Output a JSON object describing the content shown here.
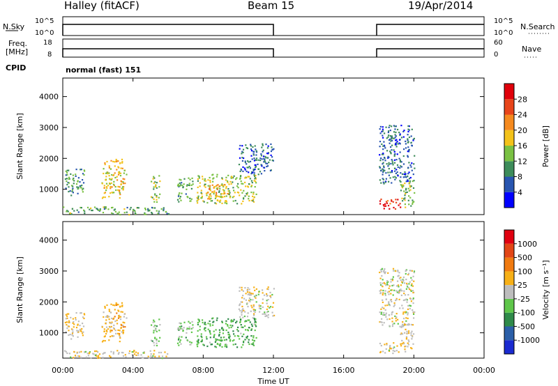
{
  "header": {
    "station": "Halley (fitACF)",
    "beam": "Beam 15",
    "date": "19/Apr/2014"
  },
  "panels": {
    "nsky": {
      "left_label": "N.Sky",
      "left_ticks": [
        "10^5",
        "10^0"
      ],
      "right_ticks": [
        "10^5",
        "10^0"
      ],
      "right_label": "N.Search"
    },
    "freq": {
      "left_label_1": "Freq.",
      "left_label_2": "[MHz]",
      "left_ticks": [
        "18",
        "8"
      ],
      "right_ticks": [
        "60",
        "0"
      ],
      "right_label": "Nave"
    },
    "cpid": {
      "label": "CPID",
      "value": "normal (fast) 151"
    }
  },
  "colorbars": {
    "power": {
      "label": "Power [dB]",
      "ticks": [
        "28",
        "24",
        "20",
        "16",
        "12",
        "8",
        "4"
      ],
      "colors": [
        "#0000ff",
        "#2855b0",
        "#3d8c5a",
        "#7ac143",
        "#f3c21a",
        "#f58a1f",
        "#e8451a",
        "#e0000a"
      ]
    },
    "velocity": {
      "label": "Velocity [m s⁻¹]",
      "ticks": [
        "1000",
        "500",
        "100",
        "25",
        "-25",
        "-100",
        "-500",
        "-1000"
      ],
      "colors": [
        "#1a2ad0",
        "#2b5fa8",
        "#2f8a4a",
        "#5fc64a",
        "#bdbdbd",
        "#f7b017",
        "#f07a10",
        "#e24616",
        "#e00010"
      ]
    }
  },
  "axes": {
    "ylabel": "Slant Range [km]",
    "xlabel": "Time UT",
    "x_ticks": [
      "00:00",
      "04:00",
      "08:00",
      "12:00",
      "16:00",
      "20:00",
      "00:00"
    ],
    "y_ticks": [
      "1000",
      "2000",
      "3000",
      "4000"
    ]
  },
  "chart_data": [
    {
      "type": "heatmap",
      "title": "Power",
      "xlabel": "Time UT",
      "ylabel": "Slant Range [km]",
      "xlim_hours": [
        0,
        24
      ],
      "ylim_km": [
        180,
        4600
      ],
      "colorbar": "Power [dB]",
      "clim": [
        0,
        32
      ],
      "blobs": [
        {
          "t0": 0.1,
          "t1": 1.2,
          "r0": 800,
          "r1": 1700,
          "value": 10
        },
        {
          "t0": 2.2,
          "t1": 3.6,
          "r0": 700,
          "r1": 2000,
          "value": 18
        },
        {
          "t0": 5.0,
          "t1": 5.5,
          "r0": 600,
          "r1": 1500,
          "value": 14
        },
        {
          "t0": 6.5,
          "t1": 7.4,
          "r0": 600,
          "r1": 1400,
          "value": 11
        },
        {
          "t0": 7.6,
          "t1": 11.0,
          "r0": 550,
          "r1": 1500,
          "value": 15
        },
        {
          "t0": 8.2,
          "t1": 9.4,
          "r0": 700,
          "r1": 1200,
          "value": 20
        },
        {
          "t0": 10.0,
          "t1": 12.0,
          "r0": 1500,
          "r1": 2500,
          "value": 7
        },
        {
          "t0": 18.0,
          "t1": 19.2,
          "r0": 350,
          "r1": 700,
          "value": 28
        },
        {
          "t0": 18.0,
          "t1": 20.0,
          "r0": 1200,
          "r1": 3100,
          "value": 7
        },
        {
          "t0": 19.2,
          "t1": 20.0,
          "r0": 400,
          "r1": 1300,
          "value": 13
        },
        {
          "t0": 0.0,
          "t1": 6.0,
          "r0": 200,
          "r1": 450,
          "value": 12
        }
      ]
    },
    {
      "type": "heatmap",
      "title": "Velocity",
      "xlabel": "Time UT",
      "ylabel": "Slant Range [km]",
      "xlim_hours": [
        0,
        24
      ],
      "ylim_km": [
        180,
        4600
      ],
      "colorbar": "Velocity [m s⁻¹]",
      "clim": [
        -1000,
        1000
      ],
      "blobs": [
        {
          "t0": 0.1,
          "t1": 1.2,
          "r0": 800,
          "r1": 1700,
          "value": 100
        },
        {
          "t0": 2.2,
          "t1": 3.6,
          "r0": 700,
          "r1": 2000,
          "value": 200
        },
        {
          "t0": 5.0,
          "t1": 5.5,
          "r0": 600,
          "r1": 1500,
          "value": -150
        },
        {
          "t0": 6.5,
          "t1": 7.4,
          "r0": 600,
          "r1": 1400,
          "value": -200
        },
        {
          "t0": 7.6,
          "t1": 11.0,
          "r0": 550,
          "r1": 1500,
          "value": -300
        },
        {
          "t0": 10.0,
          "t1": 12.0,
          "r0": 1500,
          "r1": 2500,
          "value": 0
        },
        {
          "t0": 18.0,
          "t1": 19.2,
          "r0": 350,
          "r1": 700,
          "value": 60
        },
        {
          "t0": 18.0,
          "t1": 20.0,
          "r0": 1200,
          "r1": 3100,
          "value": 0
        },
        {
          "t0": 19.2,
          "t1": 20.0,
          "r0": 400,
          "r1": 1300,
          "value": 80
        },
        {
          "t0": 0.0,
          "t1": 6.0,
          "r0": 200,
          "r1": 450,
          "value": 50
        }
      ]
    }
  ]
}
